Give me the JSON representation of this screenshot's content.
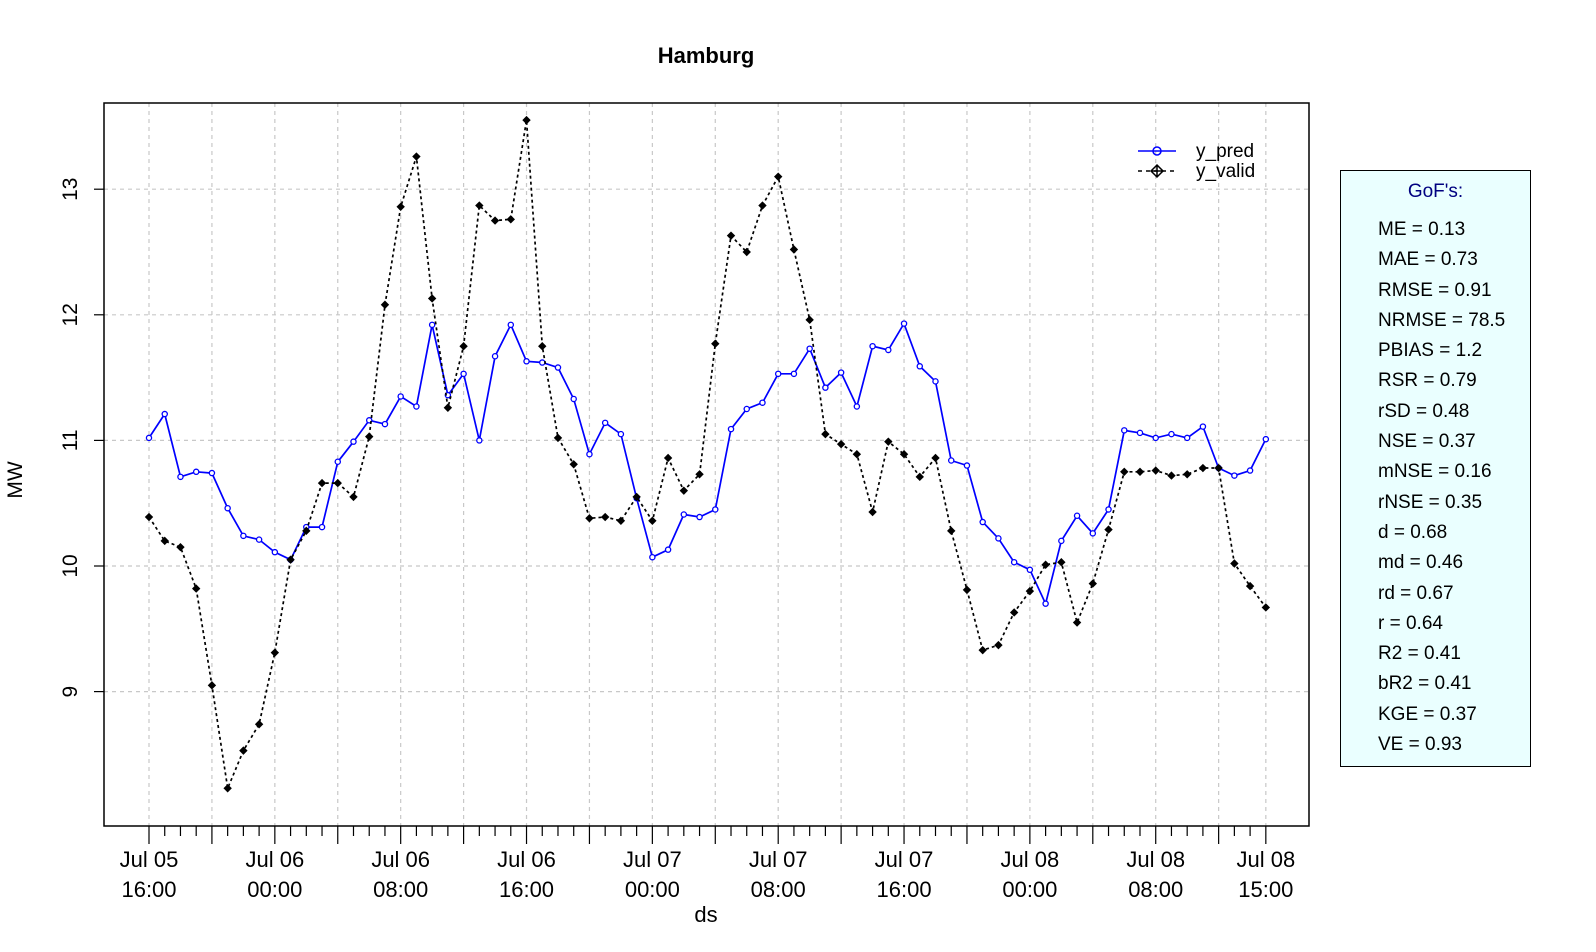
{
  "chart_data": {
    "type": "line",
    "title": "Hamburg",
    "xlabel": "ds",
    "ylabel": "MW",
    "ylim": [
      8,
      13.7
    ],
    "y_ticks": [
      9,
      10,
      11,
      12,
      13
    ],
    "x_tick_labels": [
      {
        "line1": "Jul 05",
        "line2": "16:00"
      },
      {
        "line1": "Jul 06",
        "line2": "00:00"
      },
      {
        "line1": "Jul 06",
        "line2": "08:00"
      },
      {
        "line1": "Jul 06",
        "line2": "16:00"
      },
      {
        "line1": "Jul 07",
        "line2": "00:00"
      },
      {
        "line1": "Jul 07",
        "line2": "08:00"
      },
      {
        "line1": "Jul 07",
        "line2": "16:00"
      },
      {
        "line1": "Jul 08",
        "line2": "00:00"
      },
      {
        "line1": "Jul 08",
        "line2": "08:00"
      },
      {
        "line1": "Jul 08",
        "line2": "15:00"
      }
    ],
    "x_start": "2019-07-05 16:00",
    "x_end": "2019-07-08 15:00",
    "x_step": "1 hour",
    "grid": true,
    "legend_position": "top-right",
    "series": [
      {
        "name": "y_pred",
        "color": "#0000ff",
        "line": "solid",
        "marker": "circle",
        "values": [
          11.02,
          11.21,
          10.71,
          10.75,
          10.74,
          10.46,
          10.24,
          10.21,
          10.11,
          10.05,
          10.31,
          10.31,
          10.83,
          10.99,
          11.16,
          11.13,
          11.35,
          11.27,
          11.92,
          11.36,
          11.53,
          11.0,
          11.67,
          11.92,
          11.63,
          11.62,
          11.58,
          11.33,
          10.89,
          11.14,
          11.05,
          10.54,
          10.07,
          10.13,
          10.41,
          10.39,
          10.45,
          11.09,
          11.25,
          11.3,
          11.53,
          11.53,
          11.73,
          11.42,
          11.54,
          11.27,
          11.75,
          11.72,
          11.93,
          11.59,
          11.47,
          10.84,
          10.8,
          10.35,
          10.22,
          10.03,
          9.97,
          9.7,
          10.2,
          10.4,
          10.26,
          10.45,
          11.08,
          11.06,
          11.02,
          11.05,
          11.02,
          11.11,
          10.78,
          10.72,
          10.76,
          11.01
        ]
      },
      {
        "name": "y_valid",
        "color": "#000000",
        "line": "dashed",
        "marker": "diamond",
        "values": [
          10.39,
          10.2,
          10.15,
          9.82,
          9.05,
          8.23,
          8.53,
          8.74,
          9.31,
          10.05,
          10.28,
          10.66,
          10.66,
          10.55,
          11.03,
          12.08,
          12.86,
          13.26,
          12.13,
          11.26,
          11.75,
          12.87,
          12.75,
          12.76,
          13.55,
          11.75,
          11.02,
          10.81,
          10.38,
          10.39,
          10.36,
          10.55,
          10.36,
          10.86,
          10.6,
          10.73,
          11.77,
          12.63,
          12.5,
          12.87,
          13.1,
          12.52,
          11.96,
          11.05,
          10.97,
          10.89,
          10.43,
          10.99,
          10.89,
          10.71,
          10.86,
          10.28,
          9.81,
          9.33,
          9.37,
          9.63,
          9.8,
          10.01,
          10.03,
          9.55,
          9.86,
          10.29,
          10.75,
          10.75,
          10.76,
          10.72,
          10.73,
          10.78,
          10.78,
          10.02,
          9.84,
          9.67
        ]
      }
    ]
  },
  "gof": {
    "title": "GoF's:",
    "items": [
      "ME = 0.13",
      "MAE = 0.73",
      "RMSE = 0.91",
      "NRMSE = 78.5",
      "PBIAS = 1.2",
      "RSR = 0.79",
      "rSD = 0.48",
      "NSE = 0.37",
      "mNSE = 0.16",
      "rNSE = 0.35",
      "d = 0.68",
      "md = 0.46",
      "rd = 0.67",
      "r = 0.64",
      "R2 = 0.41",
      "bR2 = 0.41",
      "KGE = 0.37",
      "VE = 0.93"
    ]
  }
}
